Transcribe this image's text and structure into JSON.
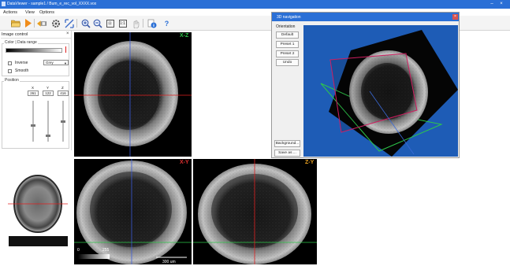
{
  "window": {
    "title": "DataViewer - sample1 / Bum_e_rec_vol_XXXX.vox",
    "minimize": "–",
    "close": "×"
  },
  "menu": [
    "Actions",
    "View",
    "Options"
  ],
  "toolbar": {
    "icons": [
      "open-folder-icon",
      "play-icon",
      "back-forward-icon",
      "gear-icon",
      "fit-icon",
      "zoom-in-icon",
      "zoom-out-icon",
      "fit-window-icon",
      "actual-size-icon",
      "hand-icon",
      "info-icon",
      "help-icon"
    ],
    "fit_window_glyph": "⊡",
    "actual_size_glyph": "1:1",
    "help_glyph": "?"
  },
  "image_control": {
    "title": "Image control",
    "close": "×",
    "color_group": "Color | Data range",
    "inverse": "Inverse",
    "smooth": "Smooth",
    "colormap": "Grey",
    "position_group": "Position",
    "axes": [
      "X",
      "Y",
      "Z"
    ],
    "positions": [
      "261",
      "122",
      "416"
    ],
    "slider_levels": [
      0.6,
      0.85,
      0.5
    ]
  },
  "views": {
    "xz": {
      "label": "X-Z",
      "label_color": "#2ec84a"
    },
    "xy": {
      "label": "X-Y",
      "label_color": "#e03030",
      "scale": "300 um",
      "range_min": "0",
      "range_max": "255"
    },
    "zy": {
      "label": "Z-Y",
      "label_color": "#e8a020"
    }
  },
  "nav3d": {
    "title": "3D navigation",
    "close": "×",
    "orientation": "Orientation",
    "buttons": [
      "Default",
      "Preset 1",
      "Preset 2",
      "Undo"
    ],
    "bottom_buttons": [
      "Background...",
      "Save as ..."
    ],
    "background": "#1e5cb6"
  }
}
